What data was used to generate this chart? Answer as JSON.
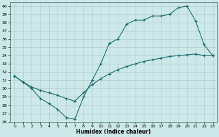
{
  "xlabel": "Humidex (Indice chaleur)",
  "ylabel": "",
  "xlim": [
    -0.5,
    23.5
  ],
  "ylim": [
    26,
    40.5
  ],
  "yticks": [
    26,
    27,
    28,
    29,
    30,
    31,
    32,
    33,
    34,
    35,
    36,
    37,
    38,
    39,
    40
  ],
  "xticks": [
    0,
    1,
    2,
    3,
    4,
    5,
    6,
    7,
    8,
    9,
    10,
    11,
    12,
    13,
    14,
    15,
    16,
    17,
    18,
    19,
    20,
    21,
    22,
    23
  ],
  "background_color": "#cce8e8",
  "grid_color": "#b0cccc",
  "line_color": "#1a6b6b",
  "line1_x": [
    0,
    1,
    2,
    3,
    4,
    5,
    6,
    7,
    8,
    9,
    10,
    11,
    12,
    13,
    14,
    15,
    16,
    17,
    18,
    19,
    20,
    21,
    22,
    23
  ],
  "line1_y": [
    31.5,
    30.8,
    30.0,
    28.8,
    28.2,
    27.5,
    26.5,
    26.3,
    29.0,
    31.0,
    33.0,
    35.5,
    36.0,
    37.8,
    38.3,
    38.3,
    38.8,
    38.8,
    39.0,
    39.8,
    40.0,
    38.2,
    35.3,
    34.0
  ],
  "line2_x": [
    0,
    1,
    2,
    3,
    4,
    5,
    6,
    7,
    8,
    9,
    10,
    11,
    12,
    13,
    14,
    15,
    16,
    17,
    18,
    19,
    20,
    21,
    22,
    23
  ],
  "line2_y": [
    31.5,
    30.8,
    30.2,
    29.8,
    29.5,
    29.2,
    28.8,
    28.5,
    29.5,
    30.5,
    31.2,
    31.8,
    32.3,
    32.7,
    33.0,
    33.3,
    33.5,
    33.7,
    33.9,
    34.0,
    34.1,
    34.2,
    34.0,
    34.0
  ]
}
